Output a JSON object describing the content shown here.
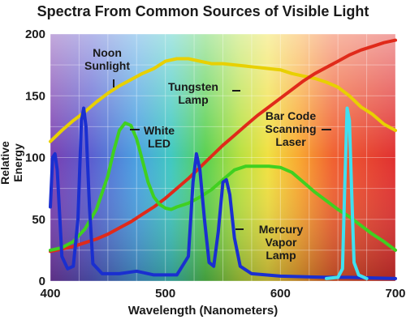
{
  "chart_data": {
    "type": "line",
    "title": "Spectra From Common Sources of Visible Light",
    "xlabel": "Wavelength (Nanometers)",
    "ylabel": "Relative Energy",
    "xlim": [
      400,
      700
    ],
    "ylim": [
      0,
      200
    ],
    "xticks": [
      400,
      500,
      600,
      700
    ],
    "yticks": [
      0,
      50,
      100,
      150,
      200
    ],
    "grid": true,
    "background": "visible spectrum gradient",
    "series": [
      {
        "name": "Noon Sunlight",
        "color": "#e8d000",
        "points": [
          [
            400,
            113
          ],
          [
            410,
            122
          ],
          [
            420,
            130
          ],
          [
            430,
            137
          ],
          [
            440,
            145
          ],
          [
            450,
            152
          ],
          [
            460,
            158
          ],
          [
            470,
            163
          ],
          [
            480,
            168
          ],
          [
            490,
            172
          ],
          [
            500,
            178
          ],
          [
            510,
            180
          ],
          [
            520,
            180
          ],
          [
            530,
            178
          ],
          [
            540,
            176
          ],
          [
            550,
            176
          ],
          [
            560,
            175
          ],
          [
            570,
            174
          ],
          [
            580,
            173
          ],
          [
            590,
            172
          ],
          [
            600,
            171
          ],
          [
            610,
            168
          ],
          [
            620,
            166
          ],
          [
            630,
            164
          ],
          [
            640,
            161
          ],
          [
            650,
            157
          ],
          [
            660,
            150
          ],
          [
            670,
            141
          ],
          [
            680,
            135
          ],
          [
            690,
            127
          ],
          [
            700,
            122
          ]
        ]
      },
      {
        "name": "Tungsten Lamp",
        "color": "#e02a1a",
        "points": [
          [
            400,
            24
          ],
          [
            410,
            26
          ],
          [
            420,
            28
          ],
          [
            430,
            31
          ],
          [
            440,
            34
          ],
          [
            450,
            38
          ],
          [
            460,
            43
          ],
          [
            470,
            48
          ],
          [
            480,
            54
          ],
          [
            490,
            60
          ],
          [
            500,
            67
          ],
          [
            510,
            75
          ],
          [
            520,
            83
          ],
          [
            530,
            92
          ],
          [
            540,
            101
          ],
          [
            550,
            110
          ],
          [
            560,
            118
          ],
          [
            570,
            126
          ],
          [
            580,
            134
          ],
          [
            590,
            141
          ],
          [
            600,
            148
          ],
          [
            610,
            155
          ],
          [
            620,
            162
          ],
          [
            630,
            168
          ],
          [
            640,
            173
          ],
          [
            650,
            178
          ],
          [
            660,
            183
          ],
          [
            670,
            187
          ],
          [
            680,
            190
          ],
          [
            690,
            193
          ],
          [
            700,
            195
          ]
        ]
      },
      {
        "name": "White LED",
        "color": "#40d020",
        "points": [
          [
            400,
            25
          ],
          [
            410,
            27
          ],
          [
            420,
            32
          ],
          [
            430,
            42
          ],
          [
            440,
            58
          ],
          [
            450,
            85
          ],
          [
            455,
            105
          ],
          [
            460,
            122
          ],
          [
            465,
            128
          ],
          [
            470,
            126
          ],
          [
            475,
            115
          ],
          [
            480,
            98
          ],
          [
            485,
            80
          ],
          [
            490,
            68
          ],
          [
            495,
            62
          ],
          [
            500,
            59
          ],
          [
            505,
            58
          ],
          [
            510,
            60
          ],
          [
            520,
            63
          ],
          [
            530,
            68
          ],
          [
            540,
            74
          ],
          [
            550,
            82
          ],
          [
            560,
            90
          ],
          [
            570,
            93
          ],
          [
            580,
            93
          ],
          [
            590,
            93
          ],
          [
            600,
            92
          ],
          [
            610,
            88
          ],
          [
            620,
            80
          ],
          [
            630,
            72
          ],
          [
            640,
            65
          ],
          [
            650,
            58
          ],
          [
            660,
            52
          ],
          [
            670,
            45
          ],
          [
            680,
            38
          ],
          [
            690,
            32
          ],
          [
            700,
            25
          ]
        ]
      },
      {
        "name": "Mercury Vapor Lamp",
        "color": "#1a2fd0",
        "points": [
          [
            400,
            60
          ],
          [
            402,
            100
          ],
          [
            404,
            103
          ],
          [
            406,
            90
          ],
          [
            410,
            20
          ],
          [
            415,
            10
          ],
          [
            420,
            12
          ],
          [
            424,
            50
          ],
          [
            427,
            130
          ],
          [
            429,
            140
          ],
          [
            431,
            125
          ],
          [
            434,
            60
          ],
          [
            437,
            14
          ],
          [
            445,
            6
          ],
          [
            460,
            6
          ],
          [
            475,
            8
          ],
          [
            490,
            5
          ],
          [
            510,
            5
          ],
          [
            520,
            20
          ],
          [
            524,
            80
          ],
          [
            527,
            103
          ],
          [
            530,
            90
          ],
          [
            534,
            50
          ],
          [
            538,
            15
          ],
          [
            542,
            12
          ],
          [
            546,
            40
          ],
          [
            550,
            80
          ],
          [
            553,
            82
          ],
          [
            556,
            70
          ],
          [
            560,
            35
          ],
          [
            565,
            12
          ],
          [
            575,
            6
          ],
          [
            600,
            4
          ],
          [
            640,
            3
          ],
          [
            660,
            3
          ],
          [
            700,
            2
          ]
        ]
      },
      {
        "name": "Bar Code Scanning Laser",
        "color": "#40e0f0",
        "points": [
          [
            640,
            2
          ],
          [
            650,
            3
          ],
          [
            654,
            10
          ],
          [
            656,
            80
          ],
          [
            658,
            140
          ],
          [
            660,
            130
          ],
          [
            662,
            70
          ],
          [
            664,
            15
          ],
          [
            668,
            5
          ],
          [
            675,
            2
          ]
        ]
      }
    ],
    "annotations": [
      {
        "series": 0,
        "lines": [
          "Noon",
          "Sunlight"
        ]
      },
      {
        "series": 1,
        "lines": [
          "Tungsten",
          "Lamp"
        ]
      },
      {
        "series": 2,
        "lines": [
          "White",
          "LED"
        ]
      },
      {
        "series": 3,
        "lines": [
          "Mercury",
          "Vapor",
          "Lamp"
        ]
      },
      {
        "series": 4,
        "lines": [
          "Bar Code",
          "Scanning",
          "Laser"
        ]
      }
    ]
  }
}
